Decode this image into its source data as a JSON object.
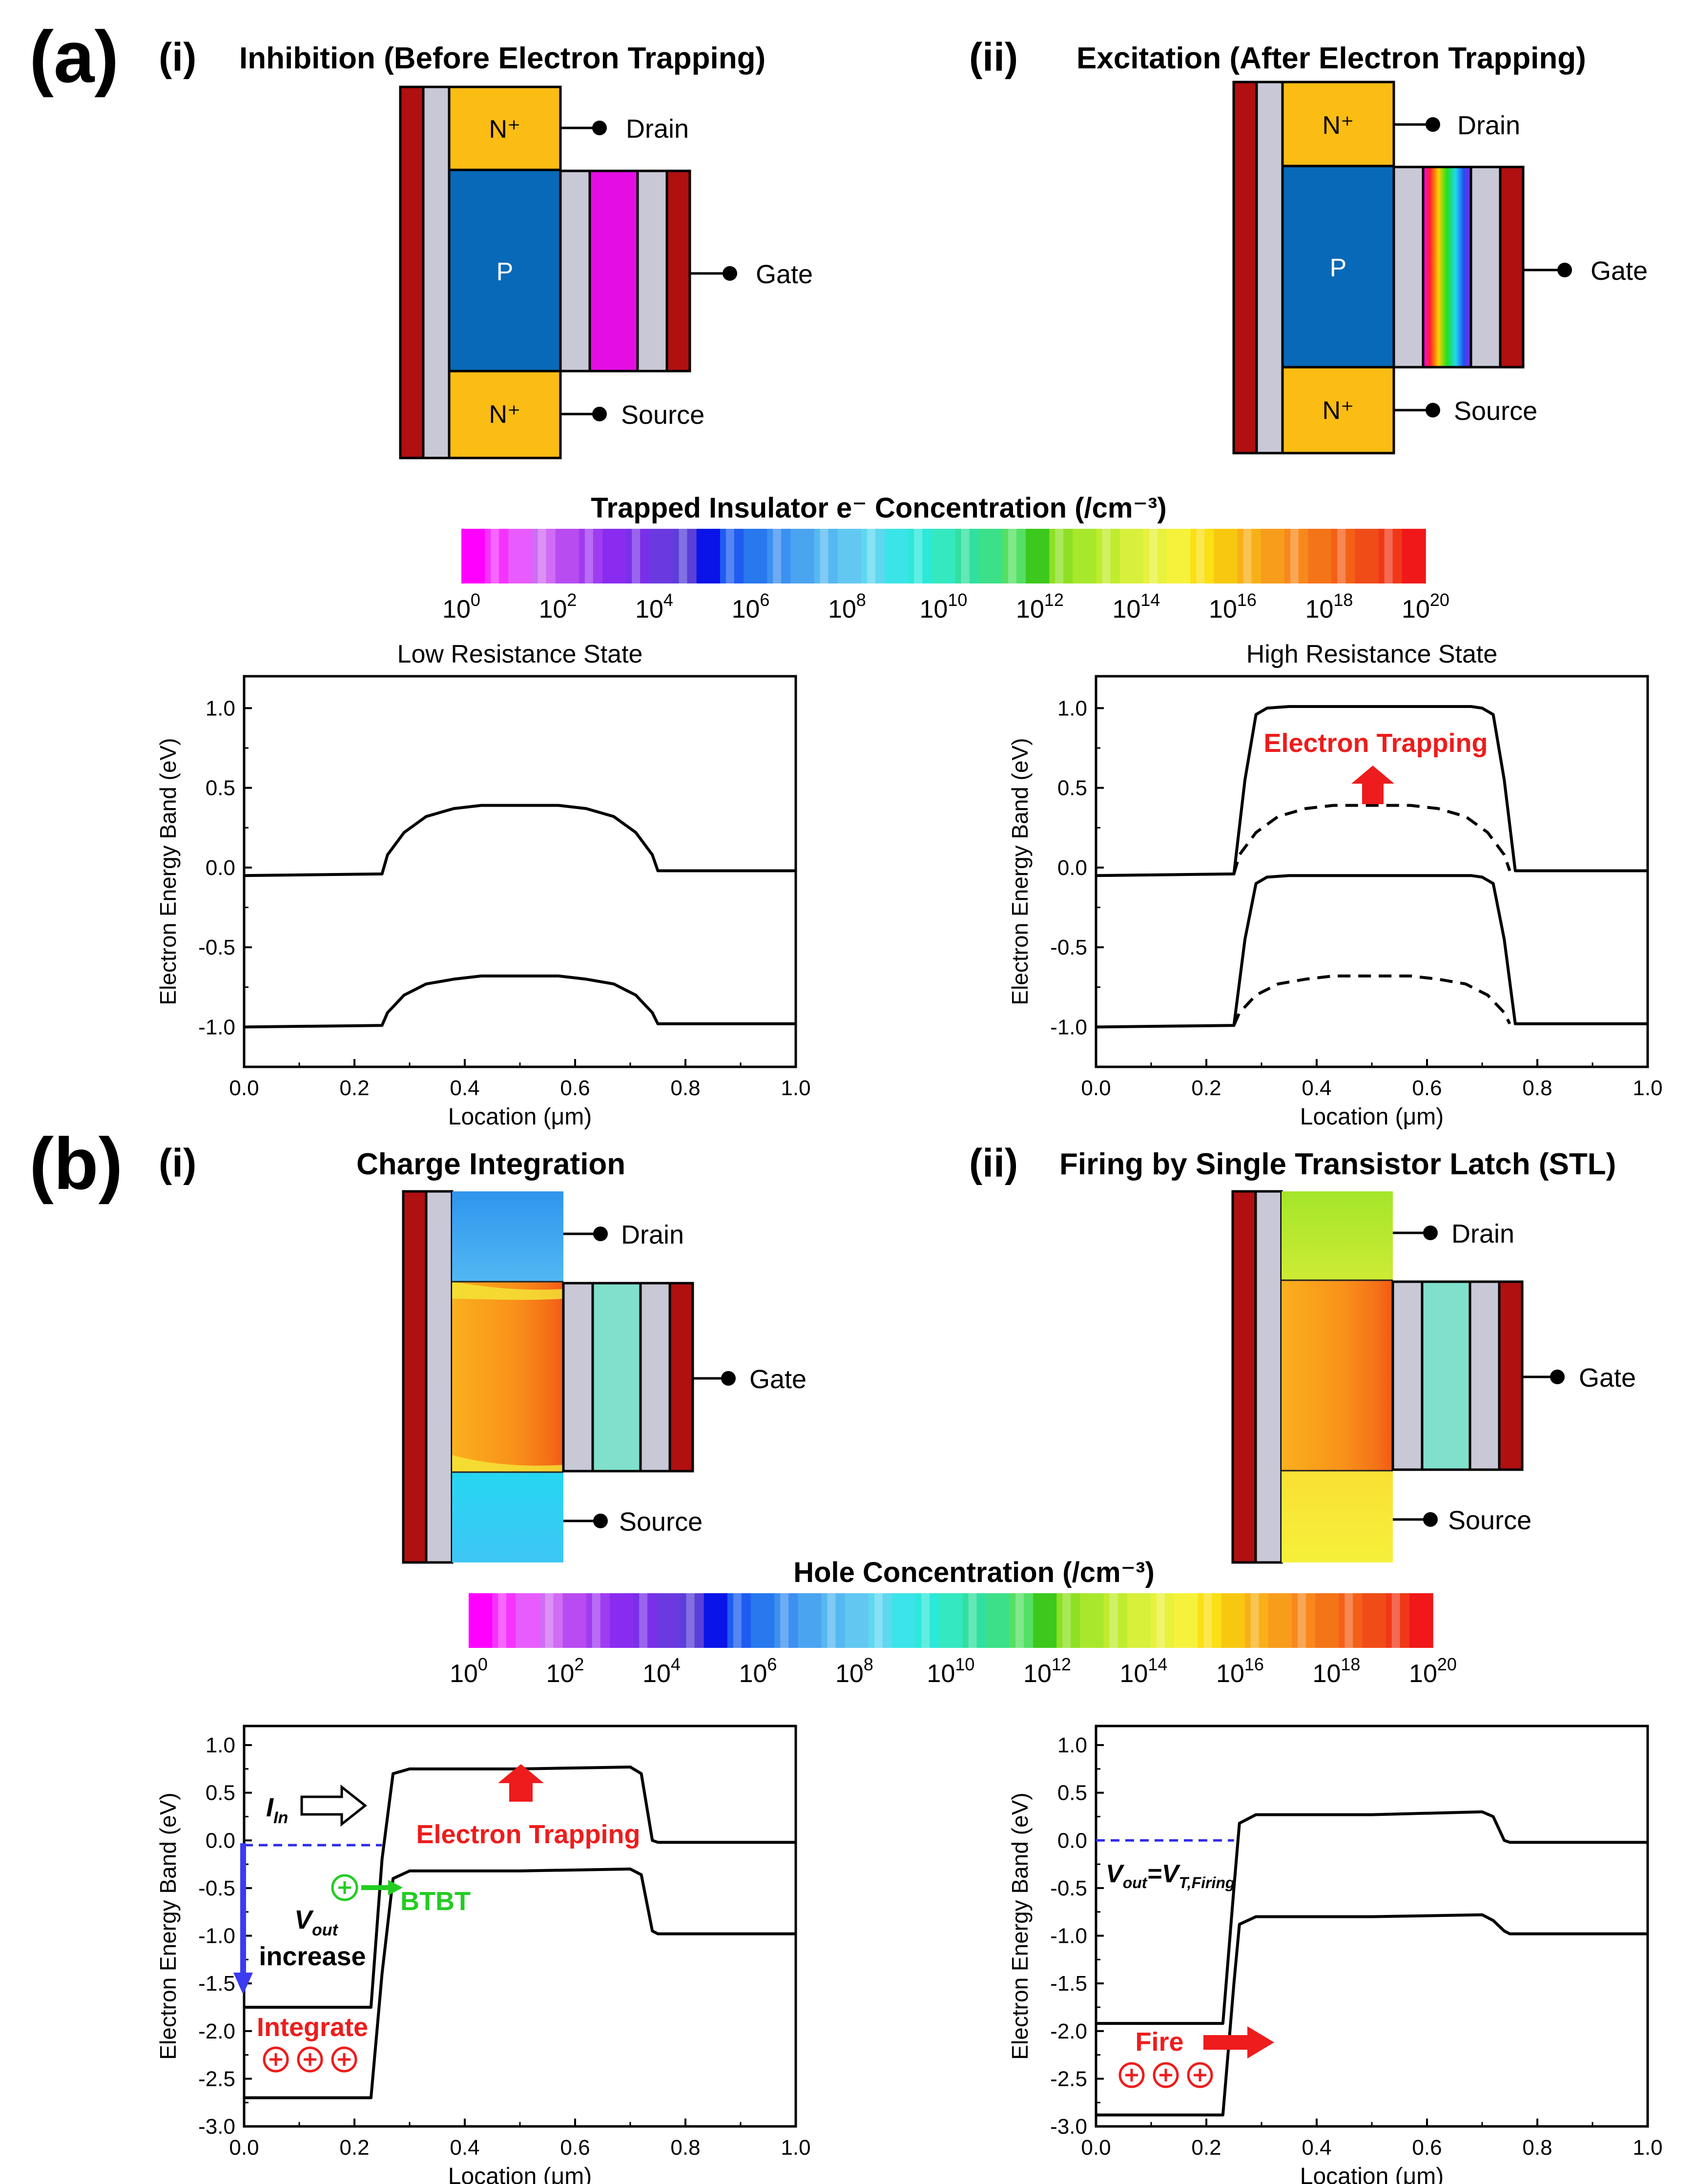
{
  "panel_a": {
    "label": "(a)",
    "sub_i": {
      "num": "(i)",
      "title": "Inhibition (Before Electron Trapping)"
    },
    "sub_ii": {
      "num": "(ii)",
      "title": "Excitation (After Electron Trapping)"
    },
    "device": {
      "drain": "Drain",
      "gate": "Gate",
      "source": "Source",
      "nplus": "N⁺",
      "p": "P"
    },
    "colorbar_title": "Trapped Insulator e⁻ Concentration (/cm⁻³)"
  },
  "panel_b": {
    "label": "(b)",
    "sub_i": {
      "num": "(i)",
      "title": "Charge Integration"
    },
    "sub_ii": {
      "num": "(ii)",
      "title": "Firing by Single Transistor Latch (STL)"
    },
    "device": {
      "drain": "Drain",
      "gate": "Gate",
      "source": "Source"
    },
    "colorbar_title": "Hole Concentration (/cm⁻³)"
  },
  "colorbar": {
    "tick_base": "10",
    "tick_exponents": [
      "0",
      "2",
      "4",
      "6",
      "8",
      "10",
      "12",
      "14",
      "16",
      "18",
      "20"
    ],
    "colors": [
      "#ff00ff",
      "#f533ff",
      "#e85cff",
      "#d06cf5",
      "#b84cf0",
      "#a03cf0",
      "#8a2cf0",
      "#7a30e8",
      "#6a3ae0",
      "#5a40d8",
      "#0a14e8",
      "#1e5cf0",
      "#2878ee",
      "#3c90f0",
      "#4aa4f0",
      "#56b8f0",
      "#62c8f2",
      "#5ed8f0",
      "#3ae4e8",
      "#2ce8d8",
      "#34e8c0",
      "#30e0a0",
      "#3ce088",
      "#54e064",
      "#3cc81c",
      "#8ee024",
      "#a8e82c",
      "#c0ec30",
      "#d8f03c",
      "#e8f23c",
      "#f6f23c",
      "#fae014",
      "#f8c810",
      "#f8b018",
      "#f89c1c",
      "#f8881c",
      "#f47418",
      "#f46018",
      "#f04c18",
      "#f03818",
      "#f01818"
    ]
  },
  "annotations": {
    "electron_trapping": "Electron Trapping",
    "i_in_main": "I",
    "i_in_sub": "In",
    "btbt": "BTBT",
    "vout_main": "V",
    "vout_sub": "out",
    "increase": "increase",
    "integrate": "Integrate",
    "vout_eq": "=V",
    "vt_sub": "T,Firing",
    "fire": "Fire"
  },
  "chart_data": [
    {
      "type": "line",
      "title": "Low Resistance State",
      "xlabel": "Location (μm)",
      "ylabel": "Electron Energy Band (eV)",
      "xlim": [
        0,
        1.0
      ],
      "ylim": [
        -1.25,
        1.2
      ],
      "x_ticks": [
        "0.0",
        "0.2",
        "0.4",
        "0.6",
        "0.8",
        "1.0"
      ],
      "y_ticks": [
        "1.0",
        "0.5",
        "0.0",
        "-0.5",
        "-1.0"
      ],
      "series": [
        {
          "name": "Conduction band",
          "style": "solid",
          "x": [
            0,
            0.25,
            0.26,
            0.29,
            0.33,
            0.38,
            0.43,
            0.5,
            0.57,
            0.62,
            0.67,
            0.71,
            0.74,
            0.75,
            1.0
          ],
          "y": [
            -0.05,
            -0.04,
            0.08,
            0.22,
            0.32,
            0.37,
            0.39,
            0.39,
            0.39,
            0.37,
            0.32,
            0.22,
            0.08,
            -0.02,
            -0.02
          ]
        },
        {
          "name": "Valence band",
          "style": "solid",
          "x": [
            0,
            0.25,
            0.26,
            0.29,
            0.33,
            0.38,
            0.43,
            0.5,
            0.57,
            0.62,
            0.67,
            0.71,
            0.74,
            0.75,
            1.0
          ],
          "y": [
            -1.0,
            -0.99,
            -0.91,
            -0.8,
            -0.73,
            -0.7,
            -0.68,
            -0.68,
            -0.68,
            -0.7,
            -0.73,
            -0.8,
            -0.91,
            -0.98,
            -0.98
          ]
        }
      ]
    },
    {
      "type": "line",
      "title": "High Resistance State",
      "xlabel": "Location (μm)",
      "ylabel": "Electron Energy Band (eV)",
      "xlim": [
        0,
        1.0
      ],
      "ylim": [
        -1.25,
        1.2
      ],
      "x_ticks": [
        "0.0",
        "0.2",
        "0.4",
        "0.6",
        "0.8",
        "1.0"
      ],
      "y_ticks": [
        "1.0",
        "0.5",
        "0.0",
        "-0.5",
        "-1.0"
      ],
      "series": [
        {
          "name": "Conduction band (after trapping)",
          "style": "solid",
          "x": [
            0,
            0.25,
            0.27,
            0.29,
            0.31,
            0.35,
            0.5,
            0.68,
            0.7,
            0.72,
            0.74,
            0.76,
            1.0
          ],
          "y": [
            -0.05,
            -0.04,
            0.55,
            0.96,
            1.0,
            1.01,
            1.01,
            1.01,
            1.0,
            0.96,
            0.55,
            -0.02,
            -0.02
          ]
        },
        {
          "name": "Valence band (after trapping)",
          "style": "solid",
          "x": [
            0,
            0.25,
            0.27,
            0.29,
            0.31,
            0.35,
            0.5,
            0.68,
            0.7,
            0.72,
            0.74,
            0.76,
            1.0
          ],
          "y": [
            -1.0,
            -0.99,
            -0.45,
            -0.1,
            -0.06,
            -0.05,
            -0.05,
            -0.05,
            -0.06,
            -0.1,
            -0.45,
            -0.98,
            -0.98
          ]
        },
        {
          "name": "Conduction band (before)",
          "style": "dashed",
          "x": [
            0.25,
            0.26,
            0.29,
            0.33,
            0.38,
            0.43,
            0.5,
            0.57,
            0.62,
            0.67,
            0.71,
            0.74,
            0.75
          ],
          "y": [
            -0.04,
            0.08,
            0.22,
            0.32,
            0.37,
            0.39,
            0.39,
            0.39,
            0.37,
            0.32,
            0.22,
            0.08,
            -0.02
          ]
        },
        {
          "name": "Valence band (before)",
          "style": "dashed",
          "x": [
            0.25,
            0.26,
            0.29,
            0.33,
            0.38,
            0.43,
            0.5,
            0.57,
            0.62,
            0.67,
            0.71,
            0.74,
            0.75
          ],
          "y": [
            -0.99,
            -0.91,
            -0.8,
            -0.73,
            -0.7,
            -0.68,
            -0.68,
            -0.68,
            -0.7,
            -0.73,
            -0.8,
            -0.91,
            -0.98
          ]
        }
      ]
    },
    {
      "type": "line",
      "title": "",
      "xlabel": "Location (μm)",
      "ylabel": "Electron Energy Band (eV)",
      "xlim": [
        0,
        1.0
      ],
      "ylim": [
        -3.0,
        1.2
      ],
      "x_ticks": [
        "0.0",
        "0.2",
        "0.4",
        "0.6",
        "0.8",
        "1.0"
      ],
      "y_ticks": [
        "1.0",
        "0.5",
        "0.0",
        "-0.5",
        "-1.0",
        "-1.5",
        "-2.0",
        "-2.5",
        "-3.0"
      ],
      "series": [
        {
          "name": "Conduction band",
          "style": "solid",
          "x": [
            0,
            0.23,
            0.25,
            0.27,
            0.3,
            0.5,
            0.7,
            0.72,
            0.74,
            0.75,
            1.0
          ],
          "y": [
            -1.75,
            -1.75,
            -0.2,
            0.7,
            0.75,
            0.75,
            0.77,
            0.7,
            0.0,
            -0.02,
            -0.02
          ]
        },
        {
          "name": "Valence band",
          "style": "solid",
          "x": [
            0,
            0.23,
            0.25,
            0.27,
            0.3,
            0.5,
            0.7,
            0.72,
            0.74,
            0.75,
            1.0
          ],
          "y": [
            -2.7,
            -2.7,
            -1.4,
            -0.4,
            -0.32,
            -0.32,
            -0.3,
            -0.36,
            -0.95,
            -0.98,
            -0.98
          ]
        },
        {
          "name": "Vout level",
          "style": "dashed-blue",
          "x": [
            0.0,
            0.25
          ],
          "y": [
            -0.05,
            -0.05
          ]
        }
      ]
    },
    {
      "type": "line",
      "title": "",
      "xlabel": "Location (μm)",
      "ylabel": "Electron Energy Band (eV)",
      "xlim": [
        0,
        1.0
      ],
      "ylim": [
        -3.0,
        1.2
      ],
      "x_ticks": [
        "0.0",
        "0.2",
        "0.4",
        "0.6",
        "0.8",
        "1.0"
      ],
      "y_ticks": [
        "1.0",
        "0.5",
        "0.0",
        "-0.5",
        "-1.0",
        "-1.5",
        "-2.0",
        "-2.5",
        "-3.0"
      ],
      "series": [
        {
          "name": "Conduction band",
          "style": "solid",
          "x": [
            0,
            0.23,
            0.25,
            0.26,
            0.29,
            0.5,
            0.7,
            0.72,
            0.74,
            0.75,
            1.0
          ],
          "y": [
            -1.92,
            -1.92,
            -0.5,
            0.18,
            0.27,
            0.27,
            0.3,
            0.25,
            0.0,
            -0.02,
            -0.02
          ]
        },
        {
          "name": "Valence band",
          "style": "solid",
          "x": [
            0,
            0.23,
            0.25,
            0.26,
            0.29,
            0.5,
            0.7,
            0.72,
            0.74,
            0.75,
            1.0
          ],
          "y": [
            -2.88,
            -2.88,
            -1.5,
            -0.88,
            -0.8,
            -0.8,
            -0.78,
            -0.84,
            -0.95,
            -0.98,
            -0.98
          ]
        },
        {
          "name": "Vout level",
          "style": "dashed-blue",
          "x": [
            0.0,
            0.25
          ],
          "y": [
            0.0,
            0.0
          ]
        }
      ]
    }
  ]
}
